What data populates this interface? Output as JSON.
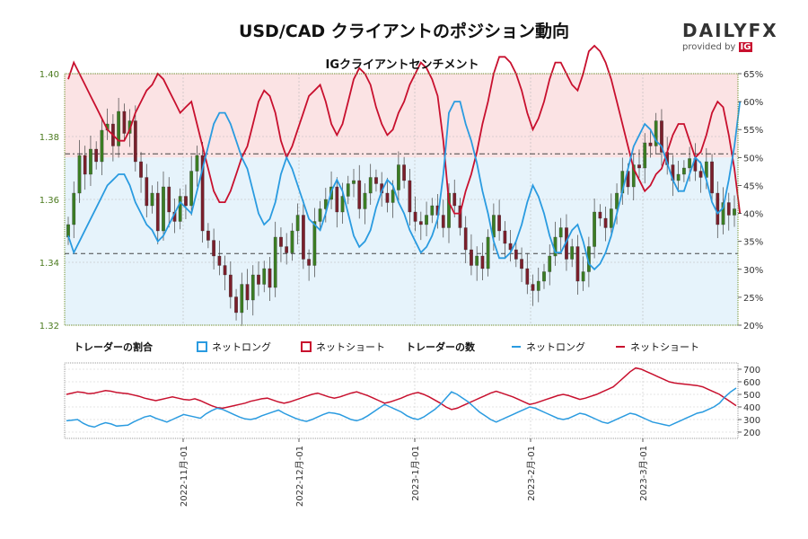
{
  "header": {
    "title": "USD/CAD クライアントのポジション動向",
    "logo_main": "DAILYFX",
    "logo_sub": "provided by",
    "logo_ig": "IG"
  },
  "chart_data": [
    {
      "type": "candlestick",
      "title": "IGクライアントセンチメント",
      "ylim_price": [
        1.32,
        1.4
      ],
      "yticks_price": [
        "1.32",
        "1.34",
        "1.36",
        "1.38",
        "1.40"
      ],
      "ylim_percent": [
        20,
        65
      ],
      "yticks_percent": [
        "20%",
        "25%",
        "30%",
        "35%",
        "40%",
        "45%",
        "50%",
        "55%",
        "60%",
        "65%"
      ],
      "reference_lines_price": [
        1.3745,
        1.3428
      ],
      "close": [
        1.352,
        1.362,
        1.374,
        1.368,
        1.376,
        1.372,
        1.382,
        1.384,
        1.377,
        1.388,
        1.381,
        1.385,
        1.372,
        1.367,
        1.358,
        1.362,
        1.35,
        1.364,
        1.356,
        1.353,
        1.361,
        1.358,
        1.369,
        1.374,
        1.35,
        1.347,
        1.342,
        1.339,
        1.336,
        1.329,
        1.324,
        1.333,
        1.328,
        1.336,
        1.333,
        1.338,
        1.332,
        1.348,
        1.345,
        1.343,
        1.35,
        1.355,
        1.341,
        1.339,
        1.353,
        1.357,
        1.36,
        1.364,
        1.356,
        1.361,
        1.365,
        1.366,
        1.357,
        1.362,
        1.367,
        1.365,
        1.362,
        1.359,
        1.363,
        1.371,
        1.366,
        1.356,
        1.353,
        1.352,
        1.355,
        1.358,
        1.355,
        1.351,
        1.362,
        1.358,
        1.351,
        1.344,
        1.339,
        1.342,
        1.338,
        1.348,
        1.355,
        1.35,
        1.346,
        1.344,
        1.341,
        1.338,
        1.333,
        1.331,
        1.334,
        1.337,
        1.342,
        1.348,
        1.351,
        1.341,
        1.345,
        1.334,
        1.337,
        1.345,
        1.356,
        1.354,
        1.351,
        1.357,
        1.362,
        1.369,
        1.364,
        1.371,
        1.37,
        1.378,
        1.377,
        1.385,
        1.375,
        1.371,
        1.366,
        1.368,
        1.37,
        1.373,
        1.369,
        1.367,
        1.372,
        1.362,
        1.352,
        1.359,
        1.355,
        1.357
      ],
      "sentiment_net_long_pct": [
        36,
        33,
        35,
        37,
        39,
        41,
        43,
        45,
        46,
        47,
        47,
        45,
        42,
        40,
        38,
        37,
        35,
        36,
        38,
        40,
        42,
        41,
        40,
        44,
        48,
        52,
        56,
        58,
        58,
        56,
        53,
        50,
        48,
        44,
        40,
        38,
        39,
        42,
        47,
        50,
        48,
        45,
        42,
        39,
        38,
        37,
        40,
        44,
        46,
        44,
        40,
        36,
        34,
        35,
        37,
        41,
        44,
        46,
        45,
        42,
        40,
        37,
        35,
        33,
        34,
        36,
        39,
        47,
        58,
        60,
        60,
        56,
        53,
        49,
        44,
        40,
        35,
        32,
        32,
        33,
        35,
        38,
        42,
        45,
        43,
        40,
        36,
        33,
        33,
        35,
        37,
        38,
        35,
        31,
        30,
        31,
        33,
        36,
        40,
        44,
        48,
        52,
        54,
        56,
        55,
        53,
        52,
        49,
        46,
        44,
        44,
        47,
        50,
        49,
        46,
        42,
        40,
        41,
        46,
        52,
        60
      ]
    },
    {
      "type": "line",
      "ylim": [
        150,
        750
      ],
      "yticks": [
        "200",
        "300",
        "400",
        "500",
        "600",
        "700"
      ],
      "x_ticks": [
        "2022-11月-01",
        "2022-12月-01",
        "2023-1月-01",
        "2023-2月-01",
        "2023-3月-01"
      ],
      "net_long": [
        290,
        295,
        300,
        270,
        250,
        240,
        260,
        275,
        265,
        248,
        252,
        255,
        280,
        300,
        320,
        330,
        310,
        295,
        280,
        300,
        320,
        340,
        330,
        320,
        310,
        345,
        370,
        390,
        380,
        360,
        340,
        320,
        305,
        300,
        310,
        330,
        345,
        360,
        375,
        350,
        330,
        310,
        295,
        285,
        300,
        320,
        340,
        355,
        350,
        340,
        320,
        300,
        290,
        305,
        330,
        360,
        390,
        420,
        400,
        380,
        360,
        330,
        310,
        300,
        320,
        350,
        380,
        420,
        470,
        520,
        500,
        470,
        440,
        400,
        360,
        330,
        300,
        280,
        300,
        320,
        340,
        360,
        380,
        400,
        390,
        370,
        350,
        330,
        310,
        300,
        310,
        330,
        350,
        340,
        320,
        300,
        280,
        270,
        290,
        310,
        330,
        350,
        340,
        320,
        300,
        280,
        270,
        260,
        250,
        270,
        290,
        310,
        330,
        350,
        360,
        380,
        400,
        430,
        480,
        520,
        550
      ],
      "net_short": [
        500,
        510,
        520,
        515,
        505,
        510,
        520,
        530,
        525,
        515,
        510,
        505,
        495,
        485,
        470,
        460,
        450,
        460,
        470,
        480,
        470,
        460,
        455,
        465,
        450,
        430,
        410,
        395,
        390,
        400,
        410,
        420,
        430,
        445,
        455,
        465,
        470,
        455,
        440,
        430,
        440,
        455,
        470,
        485,
        500,
        510,
        495,
        480,
        470,
        480,
        495,
        510,
        520,
        505,
        490,
        470,
        450,
        430,
        440,
        455,
        470,
        490,
        505,
        515,
        500,
        480,
        455,
        430,
        400,
        380,
        390,
        410,
        430,
        450,
        470,
        490,
        510,
        525,
        510,
        495,
        480,
        460,
        440,
        420,
        430,
        445,
        460,
        475,
        490,
        500,
        490,
        475,
        460,
        470,
        485,
        500,
        520,
        540,
        560,
        600,
        640,
        680,
        710,
        700,
        680,
        660,
        640,
        620,
        600,
        590,
        585,
        580,
        575,
        570,
        560,
        540,
        520,
        500,
        470,
        440,
        410
      ]
    }
  ],
  "legend": {
    "group1_title": "トレーダーの割合",
    "group1_long": "ネットロング",
    "group1_short": "ネットショート",
    "group2_title": "トレーダーの数",
    "group2_long": "ネットロング",
    "group2_short": "ネットショート"
  },
  "colors": {
    "long": "#2a9be0",
    "short": "#c8102e",
    "bull": "#3b7d23",
    "bear": "#7a1f2b",
    "bg_long": "#e6f3fb",
    "bg_short": "#fbe3e4"
  }
}
